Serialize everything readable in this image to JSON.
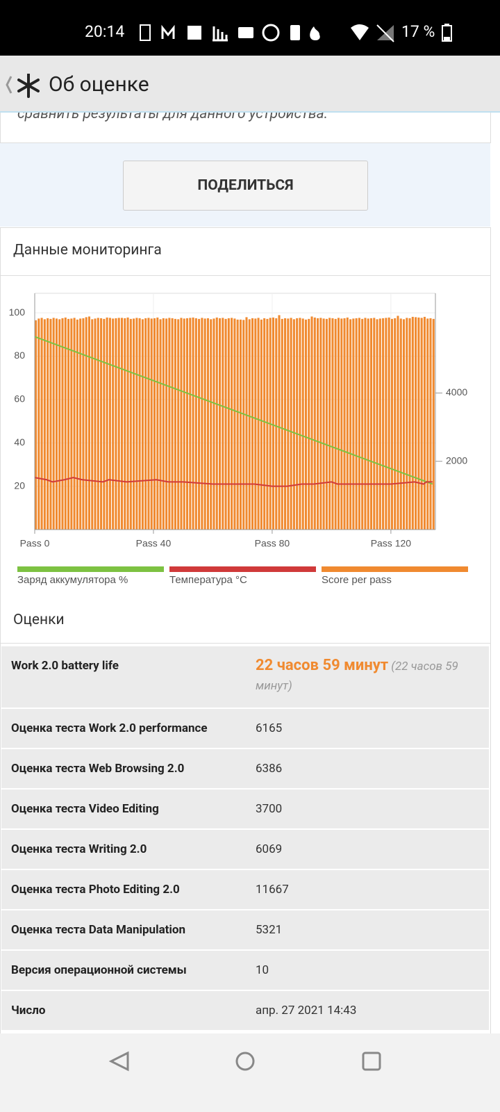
{
  "status_bar": {
    "time": "20:14",
    "battery": "17 %"
  },
  "app_bar": {
    "title": "Об оценке"
  },
  "intro_text": "сравнить результаты для данного устройства.",
  "share_button": "ПОДЕЛИТЬСЯ",
  "monitoring_title": "Данные мониторинга",
  "chart_data": {
    "type": "combo",
    "xlim": [
      0,
      135
    ],
    "xticks": [
      {
        "value": 0,
        "label": "Pass 0"
      },
      {
        "value": 40,
        "label": "Pass 40"
      },
      {
        "value": 80,
        "label": "Pass 80"
      },
      {
        "value": 120,
        "label": "Pass 120"
      }
    ],
    "ylim": [
      0,
      109
    ],
    "yticks": [
      20,
      40,
      60,
      80,
      100
    ],
    "y2lim": [
      0,
      6920
    ],
    "y2ticks": [
      2000,
      4000
    ],
    "grid": true,
    "series": [
      {
        "name": "Заряд аккумулятора %",
        "type": "line",
        "color": "#7dc242",
        "x": [
          0,
          134
        ],
        "values": [
          89,
          21
        ]
      },
      {
        "name": "Температура °C",
        "type": "line",
        "color": "#d03a3a",
        "x": [
          0,
          4,
          6,
          10,
          13,
          16,
          23,
          25,
          31,
          41,
          45,
          50,
          60,
          74,
          80,
          85,
          90,
          94,
          100,
          102,
          110,
          120,
          128,
          131,
          132,
          134
        ],
        "values": [
          24,
          23,
          22,
          23,
          24,
          23,
          22,
          23,
          22,
          23,
          22,
          22,
          21,
          21,
          20,
          20,
          21,
          21,
          22,
          21,
          21,
          21,
          22,
          21,
          22,
          22
        ]
      },
      {
        "name": "Score per pass",
        "type": "bar",
        "axis": "y2",
        "color": "#f08a30",
        "x": [
          0,
          1,
          2,
          3,
          4,
          5,
          6,
          7,
          8,
          9,
          10,
          11,
          12,
          13,
          14,
          15,
          16,
          17,
          18,
          19,
          20,
          21,
          22,
          23,
          24,
          25,
          26,
          27,
          28,
          29,
          30,
          31,
          32,
          33,
          34,
          35,
          36,
          37,
          38,
          39,
          40,
          41,
          42,
          43,
          44,
          45,
          46,
          47,
          48,
          49,
          50,
          51,
          52,
          53,
          54,
          55,
          56,
          57,
          58,
          59,
          60,
          61,
          62,
          63,
          64,
          65,
          66,
          67,
          68,
          69,
          70,
          71,
          72,
          73,
          74,
          75,
          76,
          77,
          78,
          79,
          80,
          81,
          82,
          83,
          84,
          85,
          86,
          87,
          88,
          89,
          90,
          91,
          92,
          93,
          94,
          95,
          96,
          97,
          98,
          99,
          100,
          101,
          102,
          103,
          104,
          105,
          106,
          107,
          108,
          109,
          110,
          111,
          112,
          113,
          114,
          115,
          116,
          117,
          118,
          119,
          120,
          121,
          122,
          123,
          124,
          125,
          126,
          127,
          128,
          129,
          130,
          131,
          132,
          133,
          134
        ],
        "values": [
          6130,
          6180,
          6200,
          6160,
          6190,
          6170,
          6200,
          6180,
          6160,
          6190,
          6210,
          6170,
          6180,
          6200,
          6150,
          6180,
          6190,
          6220,
          6240,
          6160,
          6180,
          6200,
          6190,
          6170,
          6210,
          6200,
          6180,
          6190,
          6200,
          6200,
          6190,
          6210,
          6170,
          6180,
          6200,
          6190,
          6160,
          6190,
          6200,
          6180,
          6190,
          6210,
          6160,
          6190,
          6180,
          6200,
          6190,
          6170,
          6160,
          6200,
          6180,
          6190,
          6200,
          6210,
          6190,
          6170,
          6200,
          6180,
          6190,
          6160,
          6180,
          6210,
          6190,
          6200,
          6170,
          6190,
          6200,
          6180,
          6150,
          6150,
          6140,
          6220,
          6160,
          6190,
          6180,
          6200,
          6150,
          6190,
          6170,
          6200,
          6210,
          6190,
          6280,
          6170,
          6190,
          6180,
          6200,
          6160,
          6190,
          6200,
          6180,
          6150,
          6170,
          6240,
          6210,
          6190,
          6200,
          6180,
          6170,
          6200,
          6190,
          6170,
          6200,
          6180,
          6190,
          6210,
          6160,
          6180,
          6190,
          6200,
          6170,
          6200,
          6180,
          6190,
          6200,
          6160,
          6180,
          6190,
          6200,
          6210,
          6170,
          6190,
          6260,
          6180,
          6160,
          6200,
          6190,
          6230,
          6220,
          6210,
          6200,
          6230,
          6180,
          6190,
          6170
        ]
      }
    ]
  },
  "scores": {
    "title": "Оценки",
    "rows": [
      {
        "label": "Work 2.0 battery life",
        "value": "22 часов 59 минут",
        "note": "(22 часов 59 минут)"
      },
      {
        "label": "Оценка теста Work 2.0 performance",
        "value": 6165
      },
      {
        "label": "Оценка теста Web Browsing 2.0",
        "value": 6386
      },
      {
        "label": "Оценка теста Video Editing",
        "value": 3700
      },
      {
        "label": "Оценка теста Writing 2.0",
        "value": 6069
      },
      {
        "label": "Оценка теста Photo Editing 2.0",
        "value": 11667
      },
      {
        "label": "Оценка теста Data Manipulation",
        "value": 5321
      },
      {
        "label": "Версия операционной системы",
        "value": 10
      },
      {
        "label": "Число",
        "value": "апр. 27 2021 14:43"
      }
    ]
  }
}
